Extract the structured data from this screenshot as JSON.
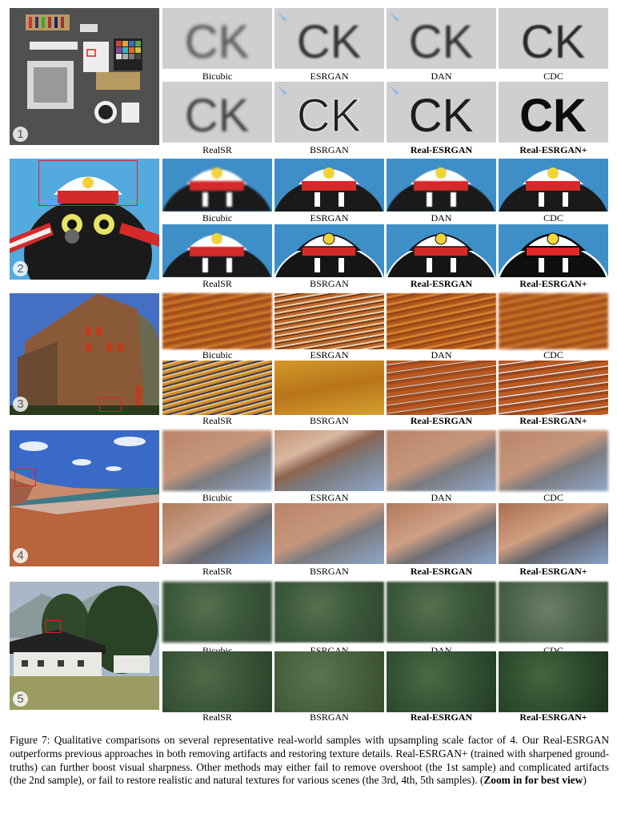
{
  "methods_row1": [
    "Bicubic",
    "ESRGAN",
    "DAN",
    "CDC"
  ],
  "methods_row2": [
    "RealSR",
    "BSRGAN",
    "Real-ESRGAN",
    "Real-ESRGAN+"
  ],
  "samples": [
    {
      "number": "1",
      "tile_letters": "CK"
    },
    {
      "number": "2"
    },
    {
      "number": "3"
    },
    {
      "number": "4"
    },
    {
      "number": "5"
    }
  ],
  "caption": {
    "label": "Figure 7:",
    "text": " Qualitative comparisons on several representative real-world samples with upsampling scale factor of 4. Our Real-ESRGAN outperforms previous approaches in both removing artifacts and restoring texture details. Real-ESRGAN+ (trained with sharpened ground-truths) can further boost visual sharpness. Other methods may either fail to remove overshoot (the 1st sample) and complicated artifacts (the 2nd sample), or fail to restore realistic and natural textures for various scenes (the 3rd, 4th, 5th samples). (",
    "zoom": "Zoom in for best view",
    "close": ")"
  },
  "colors": {
    "highlight_box": "#e02020"
  }
}
